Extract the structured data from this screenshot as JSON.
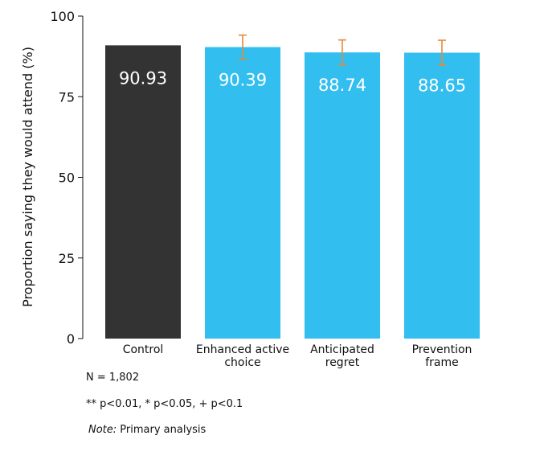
{
  "chart_data": {
    "type": "bar",
    "ylabel": "Proportion saying they would attend (%)",
    "xlabel": "",
    "ylim": [
      0,
      100
    ],
    "yticks": [
      0,
      25,
      50,
      75,
      100
    ],
    "grid": false,
    "categories": [
      "Control",
      "Enhanced active choice",
      "Anticipated regret",
      "Prevention frame"
    ],
    "category_lines": [
      [
        "Control"
      ],
      [
        "Enhanced active",
        "choice"
      ],
      [
        "Anticipated",
        "regret"
      ],
      [
        "Prevention",
        "frame"
      ]
    ],
    "values": [
      90.93,
      90.39,
      88.74,
      88.65
    ],
    "value_labels": [
      "90.93",
      "90.39",
      "88.74",
      "88.65"
    ],
    "error_bars": [
      null,
      [
        86.7,
        94.1
      ],
      [
        84.9,
        92.6
      ],
      [
        84.8,
        92.5
      ]
    ],
    "colors": {
      "control_bar": "#333333",
      "treatment_bar": "#33bef0",
      "error_bar": "#e8893a",
      "value_label": "#ffffff",
      "text": "#111111"
    }
  },
  "notes": {
    "n": "N = 1,802",
    "significance": "** p<0.01, * p<0.05, + p<0.1",
    "note_label": "Note:",
    "note_text": " Primary analysis"
  }
}
